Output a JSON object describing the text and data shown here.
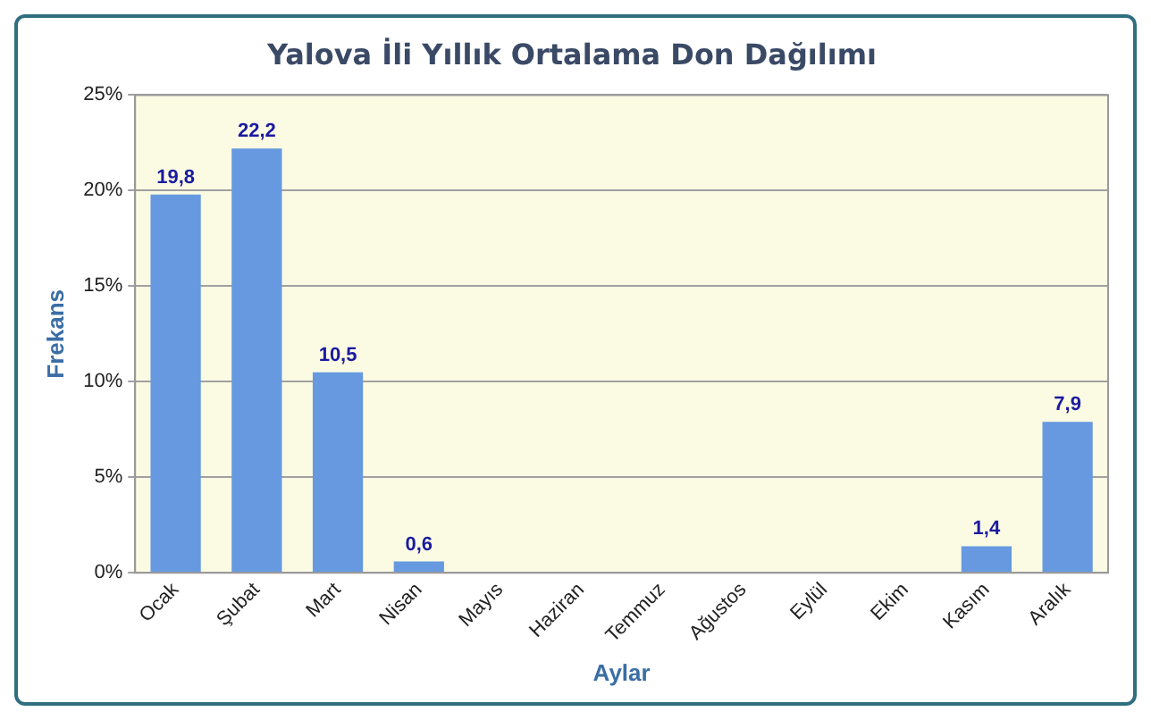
{
  "chart_data": {
    "type": "bar",
    "title": "Yalova İli Yıllık Ortalama Don Dağılımı",
    "xlabel": "Aylar",
    "ylabel": "Frekans",
    "categories": [
      "Ocak",
      "Şubat",
      "Mart",
      "Nisan",
      "Mayıs",
      "Haziran",
      "Temmuz",
      "Ağustos",
      "Eylül",
      "Ekim",
      "Kasım",
      "Aralık"
    ],
    "values": [
      19.8,
      22.2,
      10.5,
      0.6,
      0,
      0,
      0,
      0,
      0,
      0,
      1.4,
      7.9
    ],
    "value_labels": [
      "19,8",
      "22,2",
      "10,5",
      "0,6",
      null,
      null,
      null,
      null,
      null,
      null,
      "1,4",
      "7,9"
    ],
    "color": "#6699e0",
    "ylim": [
      0,
      25
    ],
    "yticks": [
      {
        "value": 0,
        "label": "0%"
      },
      {
        "value": 5,
        "label": "5%"
      },
      {
        "value": 10,
        "label": "10%"
      },
      {
        "value": 15,
        "label": "15%"
      },
      {
        "value": 20,
        "label": "20%"
      },
      {
        "value": 25,
        "label": "25%"
      }
    ],
    "grid": "y",
    "legend": false
  }
}
